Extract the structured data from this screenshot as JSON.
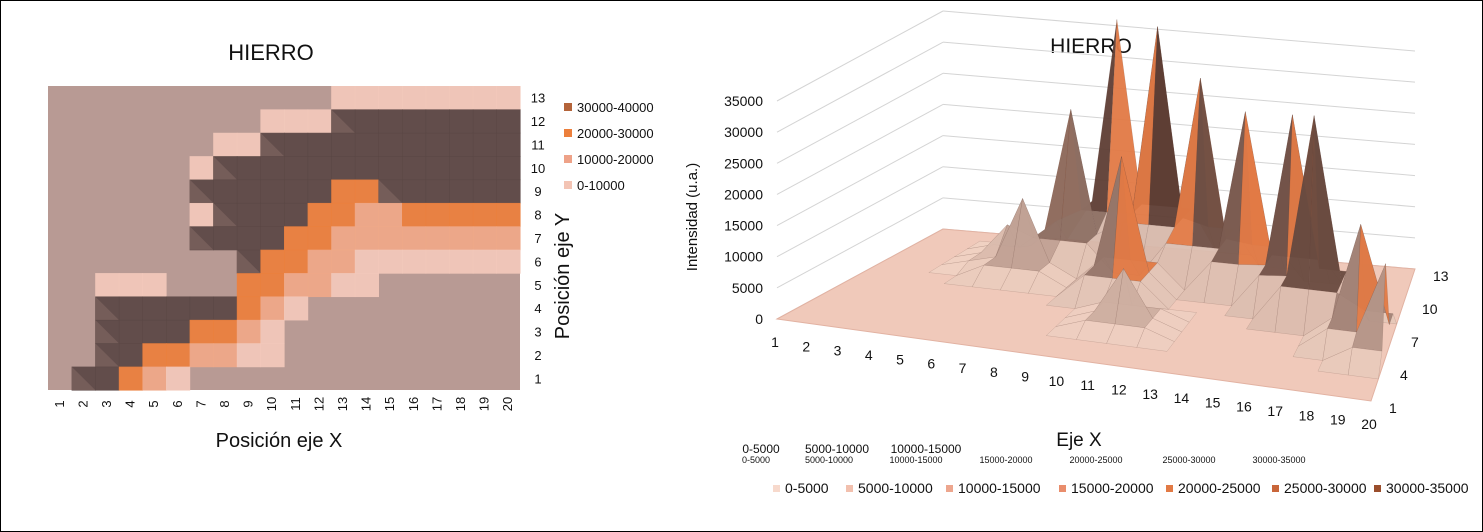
{
  "chart_data": [
    {
      "type": "heatmap",
      "title": "HIERRO",
      "xlabel": "Posición eje X",
      "ylabel": "Posición eje Y",
      "x_ticks": [
        "1",
        "2",
        "3",
        "4",
        "5",
        "6",
        "7",
        "8",
        "9",
        "10",
        "11",
        "12",
        "13",
        "14",
        "15",
        "16",
        "17",
        "18",
        "19",
        "20"
      ],
      "y_ticks": [
        "1",
        "2",
        "3",
        "4",
        "5",
        "6",
        "7",
        "8",
        "9",
        "10",
        "11",
        "12",
        "13"
      ],
      "legend_position": "top-right",
      "legend": [
        {
          "label": "30000-40000",
          "color": "#b4643a"
        },
        {
          "label": "20000-30000",
          "color": "#ec7f3c"
        },
        {
          "label": "10000-20000",
          "color": "#eea288"
        },
        {
          "label": "0-10000",
          "color": "#f3c4b4"
        }
      ],
      "background_color": "#b89a94",
      "z_values": [
        [
          0,
          0,
          0,
          0,
          0,
          0,
          0,
          0,
          0,
          0,
          0,
          0,
          5000,
          5000,
          5000,
          5000,
          5000,
          5000,
          5000,
          5000
        ],
        [
          0,
          0,
          0,
          0,
          0,
          0,
          0,
          0,
          0,
          5000,
          5000,
          5000,
          40000,
          40000,
          40000,
          40000,
          40000,
          40000,
          40000,
          40000
        ],
        [
          0,
          0,
          0,
          0,
          0,
          0,
          0,
          5000,
          5000,
          40000,
          40000,
          40000,
          40000,
          40000,
          40000,
          40000,
          40000,
          40000,
          40000,
          40000
        ],
        [
          0,
          0,
          0,
          0,
          0,
          0,
          5000,
          40000,
          40000,
          40000,
          40000,
          40000,
          40000,
          40000,
          40000,
          40000,
          40000,
          40000,
          40000,
          40000
        ],
        [
          0,
          0,
          0,
          0,
          0,
          0,
          40000,
          40000,
          40000,
          40000,
          40000,
          40000,
          20000,
          20000,
          40000,
          40000,
          40000,
          40000,
          40000,
          40000
        ],
        [
          0,
          0,
          0,
          0,
          0,
          0,
          5000,
          40000,
          40000,
          40000,
          40000,
          20000,
          20000,
          12000,
          12000,
          20000,
          20000,
          20000,
          20000,
          20000
        ],
        [
          0,
          0,
          0,
          0,
          0,
          0,
          40000,
          40000,
          40000,
          40000,
          20000,
          20000,
          12000,
          12000,
          12000,
          12000,
          12000,
          12000,
          12000,
          12000
        ],
        [
          0,
          0,
          0,
          0,
          0,
          0,
          0,
          0,
          40000,
          20000,
          20000,
          12000,
          12000,
          5000,
          5000,
          5000,
          5000,
          5000,
          5000,
          5000
        ],
        [
          0,
          0,
          5000,
          5000,
          5000,
          0,
          0,
          0,
          20000,
          20000,
          12000,
          12000,
          5000,
          5000,
          0,
          0,
          0,
          0,
          0,
          0
        ],
        [
          0,
          0,
          40000,
          40000,
          40000,
          40000,
          40000,
          40000,
          20000,
          12000,
          5000,
          0,
          0,
          0,
          0,
          0,
          0,
          0,
          0,
          0
        ],
        [
          0,
          0,
          40000,
          40000,
          40000,
          40000,
          20000,
          20000,
          12000,
          5000,
          0,
          0,
          0,
          0,
          0,
          0,
          0,
          0,
          0,
          0
        ],
        [
          0,
          0,
          40000,
          40000,
          20000,
          20000,
          12000,
          12000,
          5000,
          5000,
          0,
          0,
          0,
          0,
          0,
          0,
          0,
          0,
          0,
          0
        ],
        [
          0,
          40000,
          40000,
          20000,
          12000,
          5000,
          0,
          0,
          0,
          0,
          0,
          0,
          0,
          0,
          0,
          0,
          0,
          0,
          0,
          0
        ]
      ]
    },
    {
      "type": "surface",
      "title": "HIERRO",
      "xlabel": "Eje X",
      "ylabel": "Intensidad (u.a.)",
      "x_ticks": [
        "1",
        "2",
        "3",
        "4",
        "5",
        "6",
        "7",
        "8",
        "9",
        "10",
        "11",
        "12",
        "13",
        "14",
        "15",
        "16",
        "17",
        "18",
        "19",
        "20"
      ],
      "depth_ticks": [
        "1",
        "4",
        "7",
        "10",
        "13"
      ],
      "y_ticks": [
        "0",
        "5000",
        "10000",
        "15000",
        "20000",
        "25000",
        "30000",
        "35000"
      ],
      "ylim": [
        0,
        35000
      ],
      "legend_position": "bottom",
      "legend": [
        {
          "label": "0-5000",
          "color": "#f7d9cc"
        },
        {
          "label": "5000-10000",
          "color": "#f2c0ae"
        },
        {
          "label": "10000-15000",
          "color": "#eda68e"
        },
        {
          "label": "15000-20000",
          "color": "#e98d6c"
        },
        {
          "label": "20000-25000",
          "color": "#e27a45"
        },
        {
          "label": "25000-30000",
          "color": "#c9663a"
        },
        {
          "label": "30000-35000",
          "color": "#9a4e2c"
        }
      ],
      "stray_labels_row1": [
        "0-5000",
        "5000-10000",
        "10000-15000"
      ],
      "stray_labels_row2": [
        "0-5000",
        "5000-10000",
        "10000-15000",
        "15000-20000",
        "20000-25000",
        "25000-30000",
        "30000-35000"
      ],
      "peaks": [
        {
          "x": 8,
          "depth": 13,
          "z": 36000
        },
        {
          "x": 10,
          "depth": 12,
          "z": 37000
        },
        {
          "x": 12,
          "depth": 11,
          "z": 31000
        },
        {
          "x": 14,
          "depth": 10,
          "z": 28000
        },
        {
          "x": 16,
          "depth": 9,
          "z": 30000
        },
        {
          "x": 17,
          "depth": 8,
          "z": 32000
        },
        {
          "x": 19,
          "depth": 6,
          "z": 19000
        },
        {
          "x": 20,
          "depth": 5,
          "z": 15000
        },
        {
          "x": 7,
          "depth": 11,
          "z": 24000
        },
        {
          "x": 10,
          "depth": 8,
          "z": 22000
        },
        {
          "x": 6,
          "depth": 9,
          "z": 12000
        },
        {
          "x": 11,
          "depth": 5,
          "z": 9000
        },
        {
          "x": 5,
          "depth": 10,
          "z": 6000
        }
      ]
    }
  ]
}
